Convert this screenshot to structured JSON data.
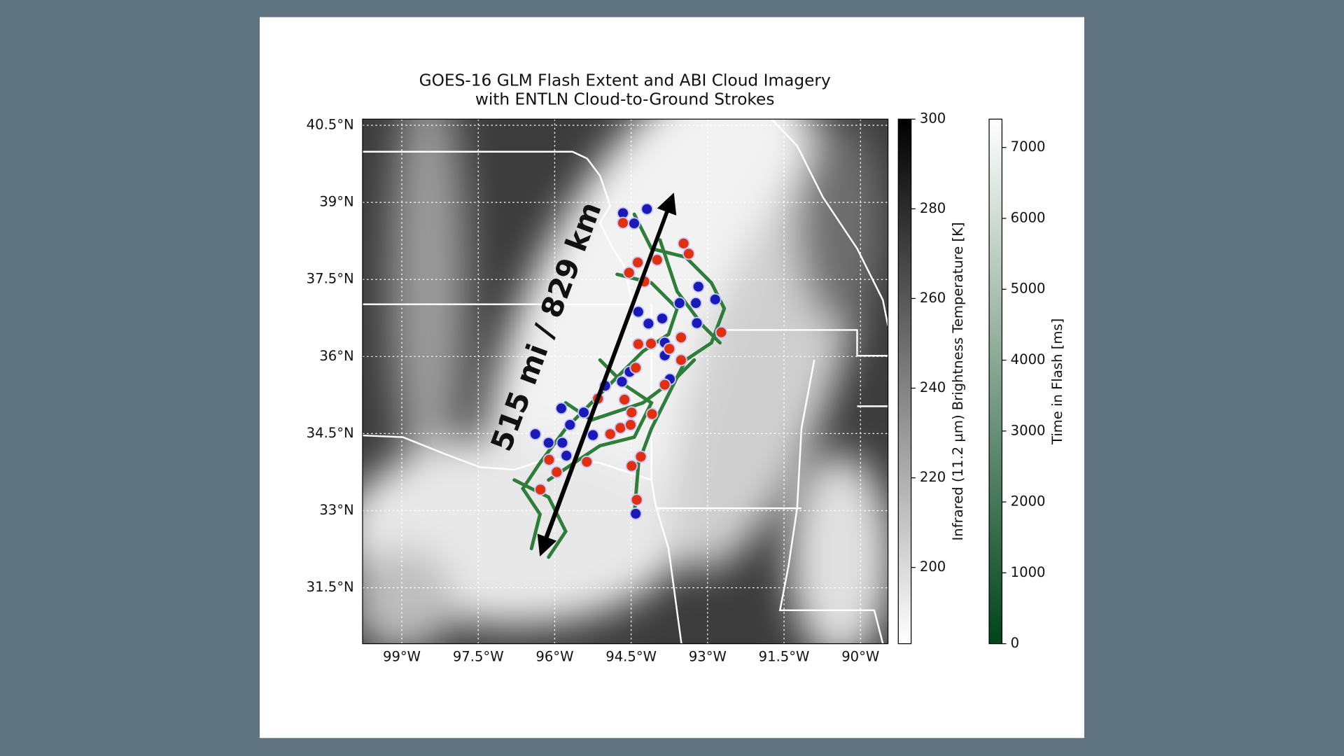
{
  "chart_data": {
    "type": "map",
    "title": "GOES-16 GLM Flash Extent and ABI Cloud Imagery",
    "subtitle": "with ENTLN Cloud-to-Ground Strokes",
    "annotation": "515 mi / 829 km",
    "xlim": [
      -99.77,
      -89.46
    ],
    "ylim": [
      30.41,
      40.62
    ],
    "xticks": [
      {
        "value": -99,
        "label": "99°W"
      },
      {
        "value": -97.5,
        "label": "97.5°W"
      },
      {
        "value": -96,
        "label": "96°W"
      },
      {
        "value": -94.5,
        "label": "94.5°W"
      },
      {
        "value": -93,
        "label": "93°W"
      },
      {
        "value": -91.5,
        "label": "91.5°W"
      },
      {
        "value": -90,
        "label": "90°W"
      }
    ],
    "yticks": [
      {
        "value": 40.5,
        "label": "40.5°N"
      },
      {
        "value": 39,
        "label": "39°N"
      },
      {
        "value": 37.5,
        "label": "37.5°N"
      },
      {
        "value": 36,
        "label": "36°N"
      },
      {
        "value": 34.5,
        "label": "34.5°N"
      },
      {
        "value": 33,
        "label": "33°N"
      },
      {
        "value": 31.5,
        "label": "31.5°N"
      }
    ],
    "grid": true,
    "series": [
      {
        "color": "#1a1ab8",
        "x": [
          -94.66,
          -94.44,
          -94.19,
          -93.18,
          -92.85,
          -93.55,
          -93.23,
          -94.36,
          -94.16,
          -93.89,
          -93.21,
          -93.84,
          -93.84,
          -93.74,
          -94.53,
          -94.68,
          -95.01,
          -95.87,
          -95.7,
          -95.43,
          -96.38,
          -96.12,
          -95.85,
          -95.77,
          -95.25,
          -94.41
        ],
        "y": [
          38.79,
          38.59,
          38.87,
          37.36,
          37.11,
          37.04,
          37.04,
          36.87,
          36.64,
          36.74,
          36.65,
          36.27,
          36.02,
          35.56,
          35.7,
          35.51,
          35.43,
          34.99,
          34.67,
          34.91,
          34.49,
          34.32,
          34.32,
          34.07,
          34.47,
          32.94
        ]
      },
      {
        "color": "#e0300e",
        "x": [
          -94.66,
          -94.37,
          -93.99,
          -94.54,
          -94.24,
          -93.47,
          -93.37,
          -92.73,
          -93.52,
          -94.36,
          -94.11,
          -93.75,
          -93.52,
          -94.41,
          -93.84,
          -95.15,
          -94.63,
          -94.49,
          -94.09,
          -94.91,
          -94.71,
          -94.51,
          -94.31,
          -94.49,
          -96.11,
          -95.96,
          -95.37,
          -96.28,
          -94.39
        ],
        "y": [
          38.6,
          37.83,
          37.88,
          37.63,
          37.46,
          38.2,
          38.0,
          36.47,
          36.37,
          36.24,
          36.25,
          36.15,
          35.93,
          35.78,
          35.45,
          35.18,
          35.16,
          34.91,
          34.88,
          34.49,
          34.61,
          34.67,
          34.05,
          33.87,
          33.99,
          33.75,
          33.95,
          33.41,
          33.21
        ]
      }
    ],
    "colorbars": [
      {
        "label": "Infrared (11.2 µm) Brightness Temperature [K]",
        "lim": [
          183,
          300
        ],
        "ticks": [
          200,
          220,
          240,
          260,
          280,
          300
        ],
        "colors": [
          "#ffffff",
          "#000000"
        ]
      },
      {
        "label": "Time in Flash [ms]",
        "lim": [
          0,
          7400
        ],
        "ticks": [
          0,
          1000,
          2000,
          3000,
          4000,
          5000,
          6000,
          7000
        ],
        "colors": [
          "#00441b",
          "#ffffff"
        ]
      }
    ]
  }
}
